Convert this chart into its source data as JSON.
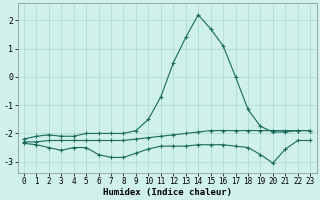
{
  "xlabel": "Humidex (Indice chaleur)",
  "background_color": "#cff0eb",
  "grid_color": "#aad8d2",
  "line_color": "#1a6b5a",
  "x": [
    0,
    1,
    2,
    3,
    4,
    5,
    6,
    7,
    8,
    9,
    10,
    11,
    12,
    13,
    14,
    15,
    16,
    17,
    18,
    19,
    20,
    21,
    22,
    23
  ],
  "y_max": [
    -2.2,
    -2.1,
    -2.05,
    -2.1,
    -2.1,
    -2.0,
    -2.0,
    -2.0,
    -2.0,
    -1.9,
    -1.5,
    -0.7,
    0.5,
    1.4,
    2.2,
    1.7,
    1.1,
    0.0,
    -1.15,
    -1.75,
    -1.95,
    -1.95,
    -1.9,
    -1.9
  ],
  "y_mean": [
    -2.3,
    -2.3,
    -2.25,
    -2.25,
    -2.25,
    -2.25,
    -2.25,
    -2.25,
    -2.25,
    -2.2,
    -2.15,
    -2.1,
    -2.05,
    -2.0,
    -1.95,
    -1.9,
    -1.9,
    -1.9,
    -1.9,
    -1.9,
    -1.9,
    -1.9,
    -1.9,
    -1.9
  ],
  "y_min": [
    -2.35,
    -2.4,
    -2.5,
    -2.6,
    -2.5,
    -2.5,
    -2.75,
    -2.85,
    -2.85,
    -2.7,
    -2.55,
    -2.45,
    -2.45,
    -2.45,
    -2.4,
    -2.4,
    -2.4,
    -2.45,
    -2.5,
    -2.75,
    -3.05,
    -2.55,
    -2.25,
    -2.25
  ],
  "ylim": [
    -3.4,
    2.6
  ],
  "yticks": [
    -3,
    -2,
    -1,
    0,
    1,
    2
  ],
  "xlim": [
    -0.5,
    23.5
  ],
  "xticks": [
    0,
    1,
    2,
    3,
    4,
    5,
    6,
    7,
    8,
    9,
    10,
    11,
    12,
    13,
    14,
    15,
    16,
    17,
    18,
    19,
    20,
    21,
    22,
    23
  ],
  "marker": "+",
  "markersize": 3,
  "linewidth": 0.8,
  "tick_fontsize": 5.5,
  "xlabel_fontsize": 6.5
}
